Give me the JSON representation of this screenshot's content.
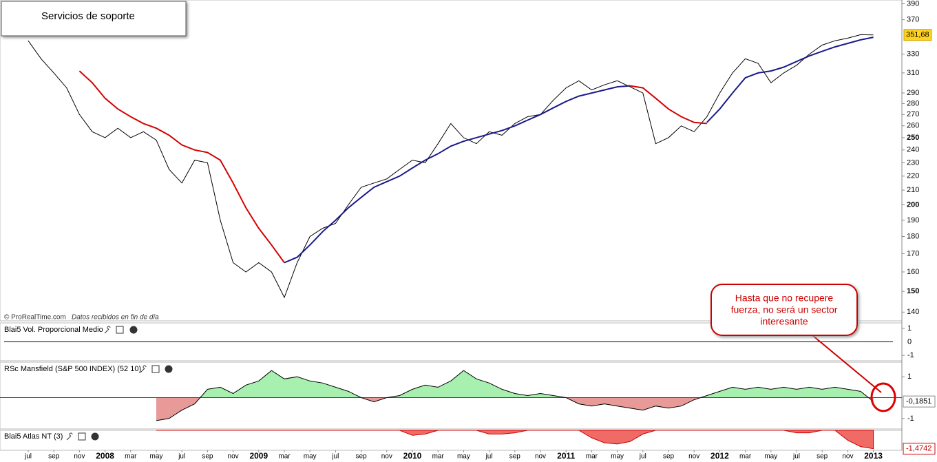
{
  "chart_data": {
    "type": "line",
    "title": "Servicios de soporte",
    "source": "© ProRealTime.com",
    "source_note": "Datos recibidos en fin de día",
    "categories": [
      "jul",
      null,
      "sep",
      null,
      "nov",
      null,
      "2008",
      null,
      "mar",
      null,
      "may",
      null,
      "jul",
      null,
      "sep",
      null,
      "nov",
      null,
      "2009",
      null,
      "mar",
      null,
      "may",
      null,
      "jul",
      null,
      "sep",
      null,
      "nov",
      null,
      "2010",
      null,
      "mar",
      null,
      "may",
      null,
      "jul",
      null,
      "sep",
      null,
      "nov",
      null,
      "2011",
      null,
      "mar",
      null,
      "may",
      null,
      "jul",
      null,
      "sep",
      null,
      "nov",
      null,
      "2012",
      null,
      "mar",
      null,
      "may",
      null,
      "jul",
      null,
      "sep",
      null,
      "nov",
      null,
      "2013"
    ],
    "log_scale": true,
    "ylim": [
      136,
      395
    ],
    "yticks": [
      140,
      150,
      160,
      170,
      180,
      190,
      200,
      210,
      220,
      230,
      240,
      250,
      260,
      270,
      280,
      290,
      310,
      330,
      370,
      390
    ],
    "series": [
      {
        "name": "Precio",
        "color": "#000000",
        "values": [
          345,
          325,
          310,
          295,
          270,
          255,
          250,
          258,
          250,
          255,
          248,
          225,
          215,
          232,
          230,
          190,
          165,
          160,
          165,
          160,
          147,
          165,
          180,
          185,
          188,
          200,
          212,
          215,
          218,
          225,
          232,
          230,
          245,
          262,
          250,
          245,
          255,
          252,
          262,
          268,
          270,
          283,
          295,
          302,
          293,
          298,
          302,
          296,
          290,
          245,
          250,
          260,
          255,
          268,
          290,
          310,
          325,
          320,
          300,
          310,
          318,
          330,
          340,
          345,
          348,
          352,
          351.68
        ],
        "value_labels": [
          null,
          null,
          null,
          null,
          null,
          null,
          null,
          null,
          null,
          null,
          null,
          null,
          null,
          null,
          null,
          null,
          null,
          null,
          null,
          null,
          null,
          null,
          null,
          null,
          null,
          null,
          null,
          null,
          null,
          null,
          null,
          null,
          null,
          null,
          null,
          null,
          null,
          null,
          null,
          null,
          null,
          null,
          null,
          null,
          null,
          null,
          null,
          null,
          null,
          null,
          null,
          null,
          null,
          null,
          null,
          null,
          null,
          null,
          null,
          null,
          null,
          null,
          null,
          null,
          null,
          null,
          "351,68"
        ]
      },
      {
        "name": "Media bajista",
        "color": "#d40000",
        "values": [
          null,
          null,
          null,
          null,
          312,
          300,
          285,
          275,
          268,
          262,
          258,
          252,
          244,
          240,
          238,
          232,
          215,
          198,
          185,
          175,
          165,
          null,
          null,
          null,
          null,
          null,
          null,
          null,
          null,
          null,
          null,
          null,
          null,
          null,
          null,
          null,
          null,
          null,
          null,
          null,
          null,
          null,
          null,
          null,
          null,
          null,
          null,
          297,
          295,
          285,
          275,
          268,
          263,
          262,
          null,
          null,
          null,
          null,
          null,
          null,
          null,
          null,
          null,
          null,
          null,
          null,
          null
        ]
      },
      {
        "name": "Media alcista",
        "color": "#1a1a8c",
        "values": [
          null,
          null,
          null,
          null,
          null,
          null,
          null,
          null,
          null,
          null,
          null,
          null,
          null,
          null,
          null,
          null,
          null,
          null,
          null,
          null,
          165,
          168,
          175,
          183,
          190,
          198,
          205,
          212,
          216,
          220,
          226,
          232,
          237,
          243,
          247,
          250,
          253,
          256,
          260,
          265,
          270,
          276,
          282,
          287,
          290,
          293,
          296,
          297,
          null,
          null,
          null,
          null,
          null,
          263,
          275,
          290,
          305,
          310,
          312,
          316,
          322,
          328,
          333,
          338,
          342,
          346,
          349
        ]
      }
    ],
    "panels": [
      {
        "name": "Blai5 Vol. Proporcional Medio",
        "ylim": [
          -1.4,
          1.4
        ],
        "yticks": [
          1,
          0,
          -1
        ]
      },
      {
        "name": "RSc Mansfield (S&P 500 INDEX) (52 10)",
        "ylim": [
          -1.5,
          1.7
        ],
        "yticks": [
          1,
          -1
        ],
        "values": [
          null,
          null,
          null,
          null,
          null,
          null,
          null,
          null,
          null,
          null,
          -1.1,
          -1.0,
          -0.6,
          -0.3,
          0.4,
          0.5,
          0.2,
          0.6,
          0.8,
          1.3,
          0.9,
          1.0,
          0.8,
          0.7,
          0.5,
          0.3,
          0.0,
          -0.2,
          0.0,
          0.1,
          0.4,
          0.6,
          0.5,
          0.8,
          1.3,
          0.9,
          0.7,
          0.4,
          0.2,
          0.1,
          0.2,
          0.1,
          0.0,
          -0.3,
          -0.4,
          -0.3,
          -0.4,
          -0.5,
          -0.6,
          -0.4,
          -0.5,
          -0.4,
          -0.1,
          0.1,
          0.3,
          0.5,
          0.4,
          0.5,
          0.4,
          0.5,
          0.4,
          0.5,
          0.4,
          0.5,
          0.4,
          0.3,
          -0.1851
        ],
        "last_label": "-0,1851"
      },
      {
        "name": "Blai5 Atlas NT (3)",
        "ylim": [
          -1.6,
          0
        ],
        "values": [
          null,
          null,
          null,
          null,
          null,
          null,
          null,
          null,
          null,
          null,
          0,
          0,
          0,
          0,
          0,
          0,
          0,
          0,
          0,
          0,
          0,
          0,
          0,
          0,
          0,
          0,
          0,
          0,
          0,
          0,
          -0.4,
          -0.3,
          0,
          0,
          0,
          0,
          -0.3,
          -0.3,
          -0.2,
          0,
          0,
          0,
          0,
          0,
          -0.6,
          -1.0,
          -1.1,
          -0.9,
          -0.3,
          0,
          0,
          0,
          0,
          0,
          0,
          0,
          0,
          0,
          0,
          0,
          -0.2,
          -0.2,
          0,
          0,
          -0.8,
          -1.3,
          -1.4742
        ],
        "last_label": "-1,4742"
      }
    ],
    "annotation": [
      "Hasta que no recupere",
      "fuerza, no será un sector",
      "interesante"
    ]
  }
}
